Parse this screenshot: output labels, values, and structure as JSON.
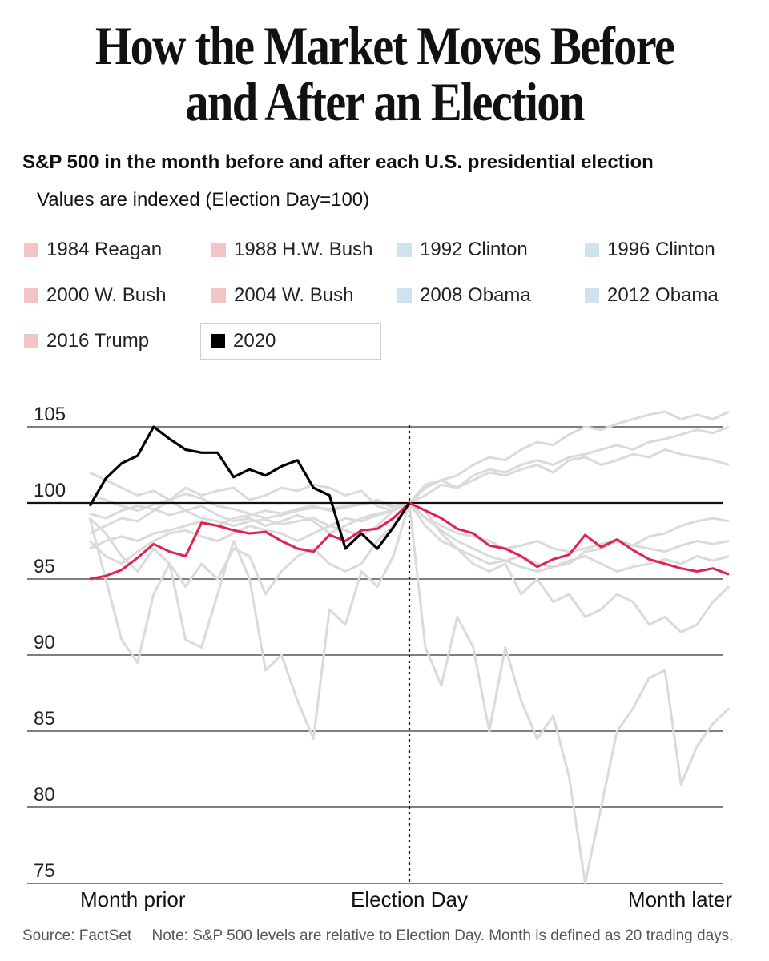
{
  "header": {
    "title_line1": "How the Market Moves Before",
    "title_line2": "and After an Election",
    "subtitle": "S&P 500 in the month before and after each U.S. presidential election",
    "note": "Values are indexed (Election Day=100)"
  },
  "footer": {
    "source": "Source: FactSet",
    "note": "Note: S&P 500 levels are relative to Election Day. Month is defined as 20 trading days."
  },
  "colors": {
    "republican": "#f2c4c4",
    "democrat": "#cfe3ee",
    "history_line": "#dadada",
    "highlight_republican": "#e0224e",
    "current": "#000000",
    "gridline": "#333333"
  },
  "legend": [
    {
      "label": "1984 Reagan",
      "party": "republican"
    },
    {
      "label": "1988 H.W. Bush",
      "party": "republican"
    },
    {
      "label": "1992 Clinton",
      "party": "democrat"
    },
    {
      "label": "1996 Clinton",
      "party": "democrat"
    },
    {
      "label": "2000 W. Bush",
      "party": "republican"
    },
    {
      "label": "2004 W. Bush",
      "party": "republican"
    },
    {
      "label": "2008 Obama",
      "party": "democrat"
    },
    {
      "label": "2012 Obama",
      "party": "democrat"
    },
    {
      "label": "2016 Trump",
      "party": "republican"
    },
    {
      "label": "2020",
      "party": "current",
      "selected": true
    }
  ],
  "chart_data": {
    "type": "line",
    "title": "How the Market Moves Before and After an Election",
    "subtitle": "S&P 500 in the month before and after each U.S. presidential election",
    "ylabel": "",
    "xlabel": "",
    "x_range": [
      -20,
      20
    ],
    "ylim": [
      75,
      105
    ],
    "yticks": [
      75,
      80,
      85,
      90,
      95,
      100,
      105
    ],
    "x_labels": [
      {
        "x": -20,
        "label": "Month prior"
      },
      {
        "x": 0,
        "label": "Election Day"
      },
      {
        "x": 20,
        "label": "Month later"
      }
    ],
    "reference_line": {
      "y": 100
    },
    "election_day_line": {
      "x": 0
    },
    "grid": true,
    "series": [
      {
        "name": "1984 Reagan",
        "role": "history",
        "x_start": -20,
        "values": [
          100.5,
          100.2,
          99.8,
          99.5,
          99.9,
          100.2,
          100.6,
          100.3,
          99.8,
          99.6,
          99.3,
          99.0,
          99.2,
          99.5,
          99.7,
          99.6,
          99.8,
          99.9,
          100.1,
          99.7,
          100,
          99.0,
          98.5,
          98.0,
          97.8,
          97.5,
          97.0,
          97.2,
          97.5,
          97.0,
          96.8,
          97.0,
          97.3,
          97.6,
          97.2,
          97.0,
          96.8,
          97.2,
          97.5,
          97.3,
          97.5
        ]
      },
      {
        "name": "1988 H.W. Bush",
        "role": "history",
        "x_start": -20,
        "values": [
          98.0,
          98.5,
          99.0,
          98.8,
          99.5,
          100.2,
          101.0,
          100.5,
          100.8,
          101.0,
          100.2,
          100.5,
          101.0,
          100.8,
          101.2,
          101.0,
          100.5,
          100.8,
          99.8,
          99.5,
          100,
          98.5,
          97.5,
          97.0,
          96.5,
          96.0,
          96.2,
          96.5,
          96.0,
          95.8,
          96.2,
          96.5,
          96.0,
          95.5,
          95.8,
          96.0,
          96.3,
          96.0,
          96.5,
          96.2,
          96.5
        ]
      },
      {
        "name": "1992 Clinton",
        "role": "history",
        "x_start": -20,
        "values": [
          97.5,
          96.5,
          96.0,
          96.8,
          97.5,
          98.0,
          98.2,
          97.8,
          97.5,
          98.0,
          98.5,
          98.2,
          98.0,
          97.5,
          98.0,
          98.5,
          99.0,
          98.8,
          99.2,
          99.5,
          100,
          100.5,
          101.2,
          101.0,
          101.5,
          102.0,
          101.8,
          102.2,
          102.5,
          102.0,
          102.8,
          103.0,
          102.5,
          102.8,
          103.2,
          103.0,
          103.5,
          103.2,
          103.0,
          102.8,
          102.5
        ]
      },
      {
        "name": "1996 Clinton",
        "role": "history",
        "x_start": -20,
        "values": [
          97.0,
          97.5,
          97.8,
          97.5,
          98.0,
          98.2,
          98.5,
          98.8,
          98.5,
          99.0,
          99.2,
          99.5,
          99.3,
          99.6,
          99.8,
          99.5,
          99.7,
          99.9,
          100.2,
          99.8,
          100,
          101.0,
          101.5,
          101.8,
          102.5,
          103.0,
          102.8,
          103.5,
          104.0,
          103.8,
          104.5,
          105.0,
          104.8,
          105.2,
          105.5,
          105.8,
          106.0,
          105.5,
          105.8,
          105.5,
          106.0
        ]
      },
      {
        "name": "2000 W. Bush",
        "role": "history",
        "x_start": -20,
        "values": [
          99.0,
          98.0,
          96.5,
          95.5,
          97.0,
          96.0,
          94.5,
          96.0,
          95.0,
          97.0,
          96.5,
          94.0,
          95.5,
          96.5,
          97.0,
          96.0,
          95.5,
          96.0,
          97.5,
          98.5,
          100,
          99.5,
          98.0,
          97.0,
          96.0,
          95.5,
          96.0,
          94.0,
          95.0,
          93.5,
          94.0,
          92.5,
          93.0,
          94.0,
          93.5,
          92.0,
          92.5,
          91.5,
          92.0,
          93.5,
          94.5
        ]
      },
      {
        "name": "2004 W. Bush",
        "role": "highlight",
        "x_start": -20,
        "values": [
          95.0,
          95.2,
          95.6,
          96.4,
          97.3,
          96.8,
          96.5,
          98.7,
          98.5,
          98.2,
          98.0,
          98.1,
          97.5,
          97.0,
          96.8,
          97.9,
          97.5,
          98.2,
          98.3,
          99.0,
          100,
          99.5,
          99.0,
          98.3,
          98.0,
          97.2,
          97.0,
          96.5,
          95.8,
          96.3,
          96.6,
          97.9,
          97.1,
          97.6,
          96.9,
          96.3,
          96.0,
          95.7,
          95.5,
          95.7,
          95.3
        ]
      },
      {
        "name": "2008 Obama",
        "role": "history",
        "x_start": -20,
        "values": [
          99.0,
          95.0,
          91.0,
          89.5,
          94.0,
          96.0,
          91.0,
          90.5,
          94.0,
          97.5,
          95.0,
          89.0,
          90.0,
          87.0,
          84.5,
          93.0,
          92.0,
          95.5,
          94.5,
          96.5,
          100,
          90.5,
          88.0,
          92.5,
          90.5,
          85.0,
          90.5,
          87.0,
          84.5,
          86.0,
          82.0,
          75.0,
          80.0,
          85.0,
          86.5,
          88.5,
          89.0,
          81.5,
          84.0,
          85.5,
          86.5
        ]
      },
      {
        "name": "2012 Obama",
        "role": "history",
        "x_start": -20,
        "values": [
          102.0,
          101.5,
          101.0,
          100.5,
          100.8,
          100.2,
          99.5,
          99.8,
          99.2,
          98.8,
          99.0,
          98.5,
          98.8,
          99.2,
          98.8,
          98.0,
          98.5,
          99.0,
          99.3,
          99.5,
          100,
          99.0,
          98.2,
          97.5,
          97.0,
          96.5,
          96.2,
          95.8,
          95.5,
          95.8,
          96.0,
          96.8,
          97.0,
          97.5,
          97.2,
          97.8,
          98.0,
          98.5,
          98.8,
          99.0,
          98.8
        ]
      },
      {
        "name": "2016 Trump",
        "role": "history",
        "x_start": -20,
        "values": [
          99.3,
          99.0,
          99.5,
          99.8,
          99.6,
          99.2,
          99.5,
          99.0,
          98.8,
          98.5,
          98.8,
          98.9,
          98.6,
          98.8,
          99.0,
          98.5,
          98.2,
          97.8,
          98.5,
          99.5,
          100,
          101.2,
          101.5,
          101.0,
          101.8,
          102.2,
          102.0,
          102.5,
          102.8,
          102.5,
          103.0,
          103.2,
          103.5,
          103.8,
          103.5,
          104.0,
          104.2,
          104.5,
          104.8,
          104.6,
          105.0
        ]
      },
      {
        "name": "2020",
        "role": "current",
        "x_start": -20,
        "values": [
          99.8,
          101.6,
          102.6,
          103.1,
          105.0,
          104.2,
          103.5,
          103.3,
          103.3,
          101.7,
          102.2,
          101.8,
          102.4,
          102.8,
          101.0,
          100.5,
          97.0,
          98.0,
          97.0,
          98.4,
          100
        ]
      }
    ]
  }
}
